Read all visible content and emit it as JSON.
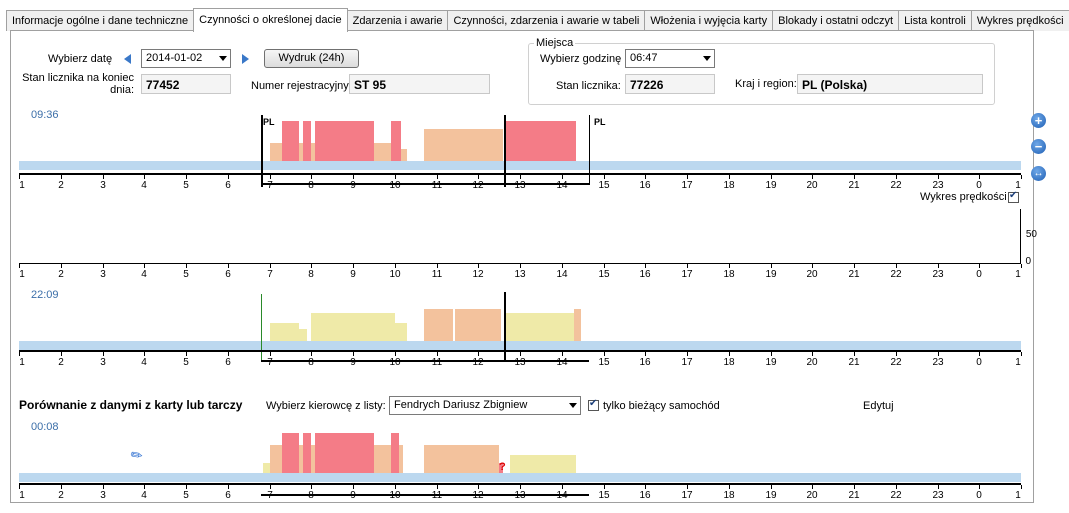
{
  "tabs": [
    {
      "label": "Informacje ogólne i dane techniczne",
      "active": false
    },
    {
      "label": "Czynności o określonej dacie",
      "active": true
    },
    {
      "label": "Zdarzenia i awarie",
      "active": false
    },
    {
      "label": "Czynności, zdarzenia i awarie w tabeli",
      "active": false
    },
    {
      "label": "Włożenia i wyjęcia karty",
      "active": false
    },
    {
      "label": "Blokady i ostatni odczyt",
      "active": false
    },
    {
      "label": "Lista kontroli",
      "active": false
    },
    {
      "label": "Wykres prędkości",
      "active": false
    }
  ],
  "form": {
    "date_label": "Wybierz datę",
    "date_value": "2014-01-02",
    "print_button": "Wydruk (24h)",
    "odometer_label": "Stan licznika na koniec dnia:",
    "odometer_value": "77452",
    "reg_label": "Numer rejestracyjny:",
    "reg_value": "ST 95"
  },
  "places": {
    "title": "Miejsca",
    "hour_label": "Wybierz godzinę",
    "hour_value": "06:47",
    "counter_label": "Stan licznika:",
    "counter_value": "77226",
    "country_label": "Kraj i region:",
    "country_value": "PL (Polska)"
  },
  "speed_chart": {
    "checkbox_label": "Wykres prędkości",
    "checked": true,
    "y_ticks": [
      "50",
      "0"
    ]
  },
  "timelines": [
    {
      "time": "09:36",
      "country_start": "PL",
      "country_end": "PL"
    },
    {
      "time": "22:09"
    },
    {
      "time": "00:08"
    }
  ],
  "hour_labels": [
    "1",
    "2",
    "3",
    "4",
    "5",
    "6",
    "7",
    "8",
    "9",
    "10",
    "11",
    "12",
    "13",
    "14",
    "15",
    "16",
    "17",
    "18",
    "19",
    "20",
    "21",
    "22",
    "23",
    "0",
    "1"
  ],
  "compare": {
    "title": "Porównanie z danymi z karty lub tarczy",
    "driver_label": "Wybierz kierowcę z listy:",
    "driver_value": "Fendrych Dariusz Zbigniew",
    "current_vehicle_label": "tylko bieżący samochód",
    "current_vehicle_checked": true,
    "edit_label": "Edytuj",
    "unknown_marker": "?"
  },
  "side_buttons": [
    "zoom-in",
    "zoom-out",
    "fit"
  ],
  "colors": {
    "drive": "#f47c87",
    "work": "#f3c29d",
    "avail": "#efeaa8",
    "rest": "#bcd8ef",
    "time_text": "#3b6ea8"
  }
}
